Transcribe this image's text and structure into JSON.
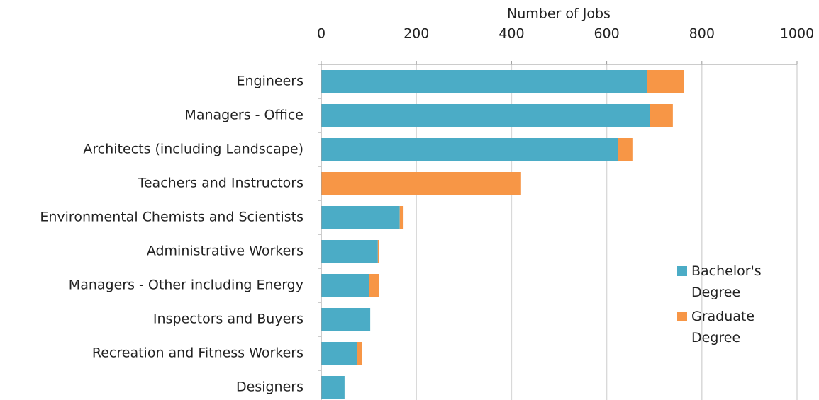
{
  "chart_data": {
    "type": "bar",
    "orientation": "horizontal",
    "stacked": true,
    "xlabel": "Number of Jobs",
    "categories": [
      "Engineers",
      "Managers - Office",
      "Architects (including Landscape)",
      "Teachers and Instructors",
      "Environmental Chemists and Scientists",
      "Administrative Workers",
      "Managers - Other including Energy",
      "Inspectors and Buyers",
      "Recreation and Fitness Workers",
      "Designers"
    ],
    "series": [
      {
        "name": "Bachelor's Degree",
        "color": "#4bacc6",
        "values": [
          685,
          691,
          623,
          0,
          165,
          119,
          100,
          103,
          75,
          49
        ]
      },
      {
        "name": "Graduate Degree",
        "color": "#f79646",
        "values": [
          78,
          48,
          31,
          420,
          8,
          3,
          22,
          0,
          10,
          0
        ]
      }
    ],
    "xlim": [
      0,
      1000
    ],
    "xticks": [
      0,
      200,
      400,
      600,
      800,
      1000
    ],
    "grid": true,
    "legend": "right"
  }
}
